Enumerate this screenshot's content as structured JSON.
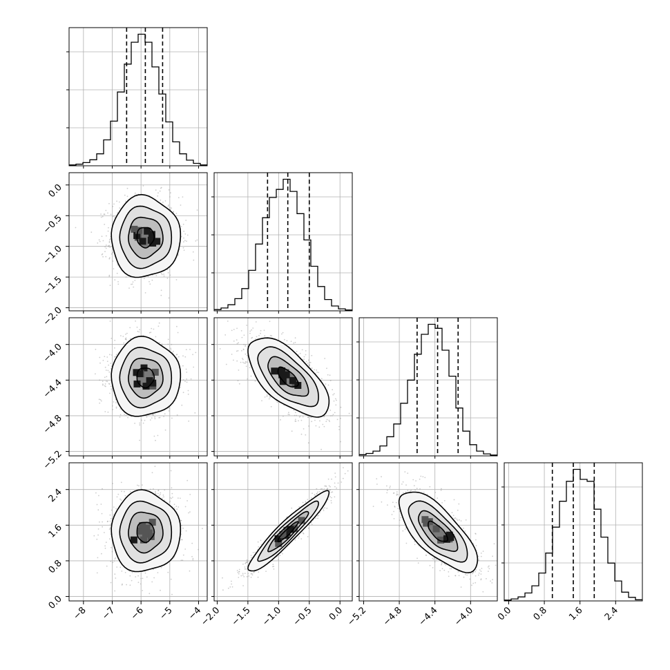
{
  "chart_data": {
    "type": "corner",
    "parameters": 4,
    "grid": true,
    "quantiles": [
      0.16,
      0.5,
      0.84
    ],
    "panel_ranges": [
      [
        -8.5,
        -3.7
      ],
      [
        -2.05,
        0.2
      ],
      [
        -5.25,
        -3.7
      ],
      [
        -0.1,
        3.0
      ]
    ],
    "ticks": [
      {
        "values": [
          -8,
          -7,
          -6,
          -5,
          -4
        ],
        "labels": [
          "−8",
          "−7",
          "−6",
          "−5",
          "−4"
        ]
      },
      {
        "values": [
          -2.0,
          -1.5,
          -1.0,
          -0.5,
          0.0
        ],
        "labels": [
          "−2.0",
          "−1.5",
          "−1.0",
          "−0.5",
          "0.0"
        ]
      },
      {
        "values": [
          -5.2,
          -4.8,
          -4.4,
          -4.0
        ],
        "labels": [
          "−5.2",
          "−4.8",
          "−4.4",
          "−4.0"
        ]
      },
      {
        "values": [
          0.0,
          0.8,
          1.6,
          2.4
        ],
        "labels": [
          "0.0",
          "0.8",
          "1.6",
          "2.4"
        ]
      }
    ],
    "marginals": [
      {
        "parameter": 0,
        "bin_edges": [
          -8.5,
          -8.26,
          -8.02,
          -7.78,
          -7.54,
          -7.3,
          -7.06,
          -6.82,
          -6.58,
          -6.34,
          -6.1,
          -5.86,
          -5.62,
          -5.38,
          -5.14,
          -4.9,
          -4.66,
          -4.42,
          -4.18,
          -3.94,
          -3.7
        ],
        "counts": [
          2,
          4,
          8,
          15,
          30,
          65,
          112,
          185,
          255,
          310,
          330,
          310,
          248,
          180,
          110,
          60,
          30,
          14,
          6,
          2
        ],
        "quantile_values": [
          -6.5,
          -5.85,
          -5.25
        ]
      },
      {
        "parameter": 1,
        "bin_edges": [
          -2.05,
          -1.9375,
          -1.825,
          -1.7125,
          -1.6,
          -1.4875,
          -1.375,
          -1.2625,
          -1.15,
          -1.0375,
          -0.925,
          -0.8125,
          -0.7,
          -0.5875,
          -0.475,
          -0.3625,
          -0.25,
          -0.1375,
          -0.025,
          0.0875,
          0.2
        ],
        "counts": [
          3,
          7,
          15,
          30,
          55,
          100,
          165,
          230,
          280,
          300,
          325,
          295,
          240,
          175,
          110,
          60,
          28,
          12,
          5,
          2
        ],
        "quantile_values": [
          -1.18,
          -0.85,
          -0.5
        ]
      },
      {
        "parameter": 2,
        "bin_edges": [
          -5.25,
          -5.1725,
          -5.095,
          -5.0175,
          -4.94,
          -4.8625,
          -4.785,
          -4.7075,
          -4.63,
          -4.5525,
          -4.475,
          -4.3975,
          -4.32,
          -4.2425,
          -4.165,
          -4.0875,
          -4.01,
          -3.9325,
          -3.855,
          -3.7775,
          -3.7
        ],
        "counts": [
          3,
          6,
          12,
          25,
          48,
          80,
          132,
          190,
          255,
          305,
          330,
          320,
          265,
          200,
          120,
          62,
          28,
          12,
          5,
          2
        ],
        "quantile_values": [
          -4.6,
          -4.37,
          -4.14
        ]
      },
      {
        "parameter": 3,
        "bin_edges": [
          -0.1,
          0.055,
          0.21,
          0.365,
          0.52,
          0.675,
          0.83,
          0.985,
          1.14,
          1.295,
          1.45,
          1.605,
          1.76,
          1.915,
          2.07,
          2.225,
          2.38,
          2.535,
          2.69,
          2.845,
          3.0
        ],
        "counts": [
          2,
          5,
          10,
          20,
          38,
          70,
          120,
          185,
          250,
          300,
          330,
          305,
          300,
          230,
          160,
          95,
          50,
          22,
          9,
          3
        ],
        "quantile_values": [
          0.98,
          1.45,
          1.92
        ]
      }
    ],
    "pairs": [
      {
        "x_parameter": 0,
        "y_parameter": 1,
        "mean": [
          -5.85,
          -0.85
        ],
        "std": [
          0.6,
          0.33
        ],
        "correlation": 0.0
      },
      {
        "x_parameter": 0,
        "y_parameter": 2,
        "mean": [
          -5.85,
          -4.37
        ],
        "std": [
          0.6,
          0.22
        ],
        "correlation": 0.0
      },
      {
        "x_parameter": 1,
        "y_parameter": 2,
        "mean": [
          -0.85,
          -4.37
        ],
        "std": [
          0.33,
          0.22
        ],
        "correlation": -0.65
      },
      {
        "x_parameter": 0,
        "y_parameter": 3,
        "mean": [
          -5.85,
          1.45
        ],
        "std": [
          0.6,
          0.45
        ],
        "correlation": 0.0
      },
      {
        "x_parameter": 1,
        "y_parameter": 3,
        "mean": [
          -0.85,
          1.45
        ],
        "std": [
          0.33,
          0.45
        ],
        "correlation": 0.94
      },
      {
        "x_parameter": 2,
        "y_parameter": 3,
        "mean": [
          -4.37,
          1.45
        ],
        "std": [
          0.22,
          0.45
        ],
        "correlation": -0.72
      }
    ],
    "contour_levels_sigma": [
      0.5,
      1.0,
      1.5,
      2.0
    ]
  }
}
